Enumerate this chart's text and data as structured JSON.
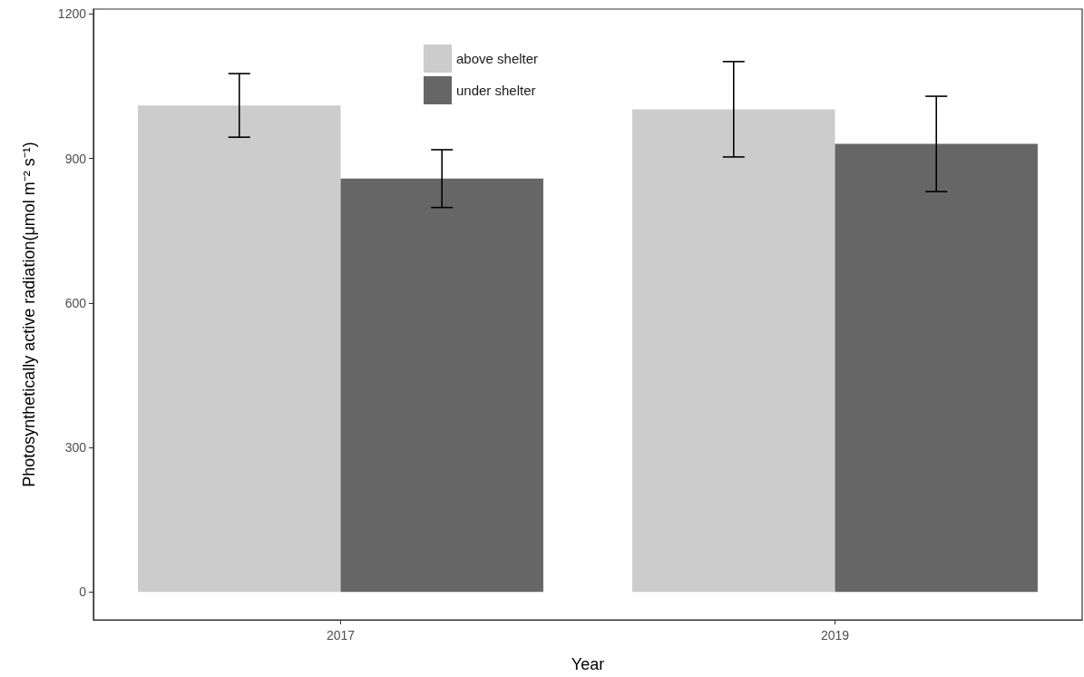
{
  "chart_data": {
    "type": "bar",
    "xlabel": "Year",
    "ylabel": "Photosynthetically active radiation(μmol m⁻² s⁻¹)",
    "categories": [
      "2017",
      "2019"
    ],
    "series": [
      {
        "name": "above shelter",
        "color": "#cccccc",
        "values": [
          1010,
          1002
        ],
        "errors": [
          66,
          99
        ]
      },
      {
        "name": "under shelter",
        "color": "#666666",
        "values": [
          858,
          930
        ],
        "errors": [
          60,
          99
        ]
      }
    ],
    "ylim": [
      -58,
      1210
    ],
    "yticks": [
      0,
      300,
      600,
      900,
      1200
    ],
    "legend": "top"
  }
}
